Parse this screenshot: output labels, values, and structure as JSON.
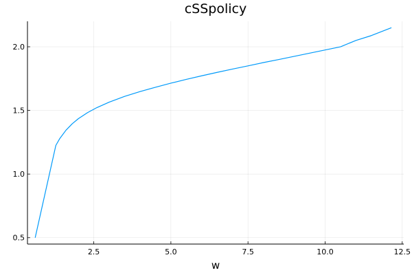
{
  "chart_data": {
    "type": "line",
    "title": "cSSpolicy",
    "xlabel": "w",
    "ylabel": "",
    "xlim": [
      0.35,
      12.55
    ],
    "ylim": [
      0.45,
      2.2
    ],
    "grid": true,
    "legend": "none",
    "x_ticks": [
      2.5,
      5.0,
      7.5,
      10.0,
      12.5
    ],
    "x_tick_labels": [
      "2.5",
      "5.0",
      "7.5",
      "10.0",
      "12.5"
    ],
    "y_ticks": [
      0.5,
      1.0,
      1.5,
      2.0
    ],
    "y_tick_labels": [
      "0.5",
      "1.0",
      "1.5",
      "2.0"
    ],
    "series": [
      {
        "color": "#009AFA",
        "x": [
          0.6,
          1.27,
          1.4,
          1.6,
          1.8,
          2.0,
          2.3,
          2.6,
          3.0,
          3.5,
          4.0,
          4.5,
          5.0,
          5.5,
          6.0,
          6.5,
          7.0,
          7.5,
          8.0,
          8.5,
          9.0,
          9.5,
          10.0,
          10.5,
          11.0,
          11.5,
          12.15
        ],
        "y": [
          0.5,
          1.225,
          1.28,
          1.345,
          1.395,
          1.435,
          1.483,
          1.522,
          1.565,
          1.61,
          1.648,
          1.682,
          1.714,
          1.744,
          1.772,
          1.799,
          1.825,
          1.85,
          1.876,
          1.9,
          1.925,
          1.95,
          1.975,
          2.0,
          2.05,
          2.088,
          2.15
        ]
      }
    ]
  }
}
